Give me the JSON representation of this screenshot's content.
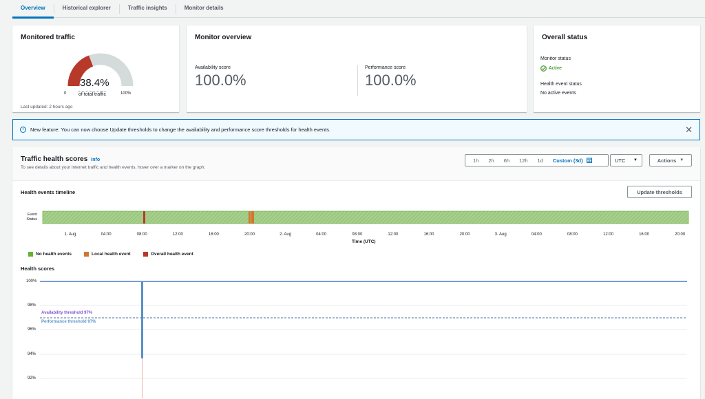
{
  "tabs": [
    {
      "label": "Overview",
      "active": true
    },
    {
      "label": "Historical explorer"
    },
    {
      "label": "Traffic insights"
    },
    {
      "label": "Monitor details"
    }
  ],
  "monitored_traffic": {
    "title": "Monitored traffic",
    "percent": "38.4%",
    "fraction": 0.384,
    "caption": "of total traffic",
    "min_label": "0",
    "max_label": "100%",
    "updated": "Last updated: 2 hours ago"
  },
  "monitor_overview": {
    "title": "Monitor overview",
    "availability_label": "Availability score",
    "availability_value": "100.0%",
    "performance_label": "Performance score",
    "performance_value": "100.0%"
  },
  "overall_status": {
    "title": "Overall status",
    "monitor_status_label": "Monitor status",
    "monitor_status_value": "Active",
    "health_event_label": "Health event status",
    "health_event_value": "No active events"
  },
  "flash": {
    "text": "New feature: You can now choose Update thresholds to change the availability and performance score thresholds for health events."
  },
  "traffic_health": {
    "title": "Traffic health scores",
    "info_link": "Info",
    "subtitle": "To see details about your internet traffic and health events, hover over a marker on the graph.",
    "ranges": [
      "1h",
      "2h",
      "6h",
      "12h",
      "1d",
      "Custom (3d)"
    ],
    "timezone": "UTC",
    "actions_label": "Actions",
    "timeline_title": "Health events timeline",
    "update_thresholds": "Update thresholds",
    "event_status_label": "Event\nStatus",
    "x_ticks": [
      "1. Aug",
      "04:00",
      "08:00",
      "12:00",
      "16:00",
      "20:00",
      "2. Aug",
      "04:00",
      "08:00",
      "12:00",
      "16:00",
      "20:00",
      "3. Aug",
      "04:00",
      "08:00",
      "12:00",
      "16:00",
      "20:00"
    ],
    "x_axis_title": "Time (UTC)",
    "legend": [
      {
        "label": "No health events",
        "color": "#6aaf35"
      },
      {
        "label": "Local health event",
        "color": "#d3752c"
      },
      {
        "label": "Overall health event",
        "color": "#b7392a"
      }
    ],
    "health_scores_title": "Health scores",
    "y_ticks": [
      "100%",
      "98%",
      "96%",
      "94%",
      "92%"
    ],
    "availability_threshold": "Availability threshold 97%",
    "performance_threshold": "Performance threshold 97%"
  }
}
